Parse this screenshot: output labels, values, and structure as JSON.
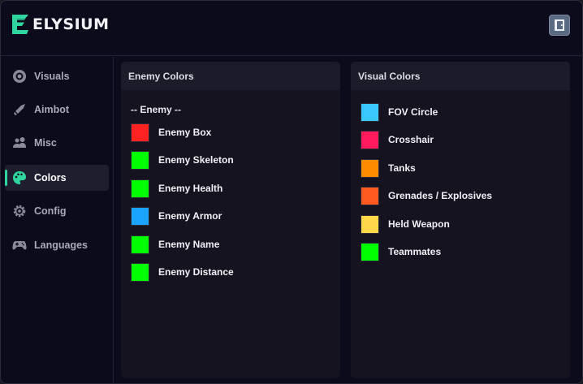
{
  "app": {
    "name": "ELYSIUM"
  },
  "sidebar": {
    "items": [
      {
        "label": "Visuals",
        "icon": "visuals-eye-icon",
        "active": false
      },
      {
        "label": "Aimbot",
        "icon": "sword-icon",
        "active": false
      },
      {
        "label": "Misc",
        "icon": "users-icon",
        "active": false
      },
      {
        "label": "Colors",
        "icon": "palette-icon",
        "active": true
      },
      {
        "label": "Config",
        "icon": "gear-icon",
        "active": false
      },
      {
        "label": "Languages",
        "icon": "gamepad-icon",
        "active": false
      }
    ]
  },
  "enemy_panel": {
    "title": "Enemy Colors",
    "section": "-- Enemy --",
    "rows": [
      {
        "label": "Enemy Box",
        "color": "#ff2222"
      },
      {
        "label": "Enemy Skeleton",
        "color": "#00ff00"
      },
      {
        "label": "Enemy Health",
        "color": "#00ff00"
      },
      {
        "label": "Enemy Armor",
        "color": "#1aa3ff"
      },
      {
        "label": "Enemy Name",
        "color": "#00ff00"
      },
      {
        "label": "Enemy Distance",
        "color": "#00ff00"
      }
    ]
  },
  "visual_panel": {
    "title": "Visual Colors",
    "rows": [
      {
        "label": "FOV Circle",
        "color": "#3ac8ff"
      },
      {
        "label": "Crosshair",
        "color": "#ff1a5e"
      },
      {
        "label": "Tanks",
        "color": "#ff8c00"
      },
      {
        "label": "Grenades / Explosives",
        "color": "#ff5a1f"
      },
      {
        "label": "Held Weapon",
        "color": "#ffd84a"
      },
      {
        "label": "Teammates",
        "color": "#00ff00"
      }
    ]
  },
  "colors": {
    "accent": "#2fd6a0",
    "background": "#0c0b1c",
    "panel": "#14131f"
  }
}
